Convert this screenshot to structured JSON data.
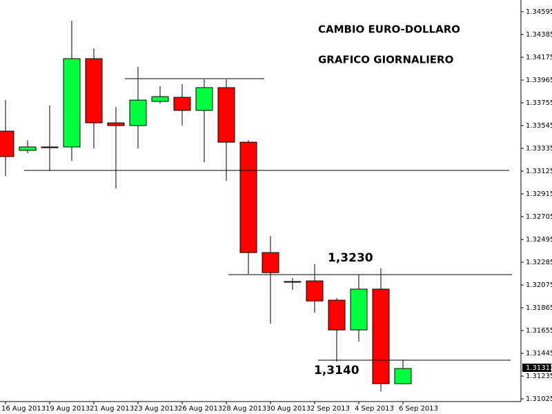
{
  "chart_data": {
    "type": "candlestick",
    "title": "CAMBIO EURO-DOLLARO",
    "subtitle": "GRAFICO GIORNALIERO",
    "annotations": [
      "1,3230",
      "1,3140"
    ],
    "last_price": 1.31312,
    "categories": [
      "16 Aug 2013",
      null,
      "19 Aug 2013",
      null,
      "21 Aug 2013",
      null,
      "23 Aug 2013",
      null,
      "26 Aug 2013",
      null,
      "28 Aug 2013",
      null,
      "30 Aug 2013",
      null,
      "2 Sep 2013",
      null,
      "4 Sep 2013",
      null,
      "6 Sep 2013"
    ],
    "open": [
      1.33494,
      1.33316,
      1.33348,
      1.33348,
      1.34162,
      1.3357,
      1.33545,
      1.33768,
      1.33806,
      1.33685,
      1.33895,
      1.33392,
      1.32374,
      1.32107,
      1.32113,
      1.31935,
      1.31661,
      1.32037,
      1.31165
    ],
    "high": [
      1.3378,
      1.33411,
      1.3373,
      1.34512,
      1.34258,
      1.33717,
      1.34086,
      1.33908,
      1.33927,
      1.33971,
      1.33971,
      1.33411,
      1.32527,
      1.32139,
      1.32266,
      1.31954,
      1.3217,
      1.32228,
      1.31388
    ],
    "low": [
      1.3308,
      1.3329,
      1.33125,
      1.3322,
      1.33335,
      1.32966,
      1.33335,
      1.33749,
      1.33545,
      1.33208,
      1.33036,
      1.32177,
      1.31718,
      1.3203,
      1.3182,
      1.31368,
      1.31553,
      1.31095,
      1.31158
    ],
    "close": [
      1.33259,
      1.33348,
      1.33341,
      1.34162,
      1.3357,
      1.33545,
      1.3378,
      1.33812,
      1.33685,
      1.33895,
      1.33392,
      1.32374,
      1.32189,
      1.32107,
      1.31928,
      1.31661,
      1.32037,
      1.31165,
      1.31305
    ],
    "up_color": "#00ff40",
    "down_color": "#ff0000",
    "doji_color": "#000000",
    "ylim": [
      1.31,
      1.34703
    ],
    "yticks": [
      1.34595,
      1.34385,
      1.34175,
      1.33965,
      1.33755,
      1.33545,
      1.33335,
      1.33125,
      1.32915,
      1.32705,
      1.32495,
      1.32285,
      1.32075,
      1.31865,
      1.31655,
      1.31445,
      1.31235,
      1.31025
    ],
    "grid": false
  }
}
